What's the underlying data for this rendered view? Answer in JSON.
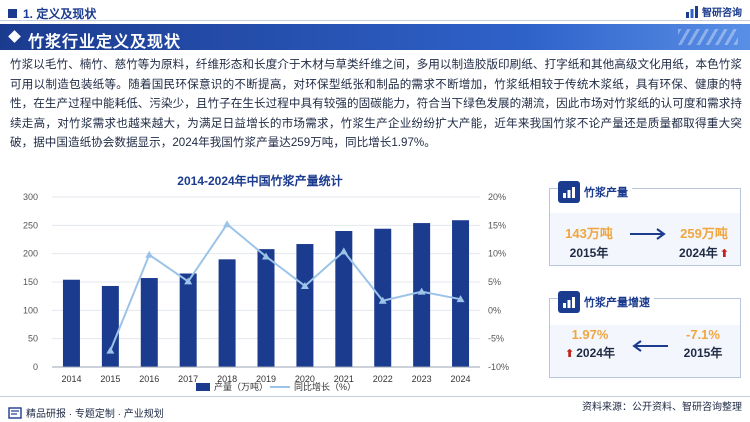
{
  "header": {
    "section_title": "1. 定义及现状",
    "brand_name": "智研咨询"
  },
  "title_bar": {
    "title": "竹浆行业定义及现状"
  },
  "paragraph": "竹浆以毛竹、楠竹、慈竹等为原料，纤维形态和长度介于木材与草类纤维之间，多用以制造胶版印刷纸、打字纸和其他高级文化用纸，本色竹浆可用以制造包装纸等。随着国民环保意识的不断提高，对环保型纸张和制品的需求不断增加，竹浆纸相较于传统木浆纸，具有环保、健康的特性，在生产过程中能耗低、污染少，且竹子在生长过程中具有较强的固碳能力，符合当下绿色发展的潮流，因此市场对竹浆纸的认可度和需求持续走高，对竹浆需求也越来越大，为满足日益增长的市场需求，竹浆生产企业纷纷扩大产能，近年来我国竹浆不论产量还是质量都取得重大突破，据中国造纸协会数据显示，2024年我国竹浆产量达259万吨，同比增长1.97%。",
  "chart_data": {
    "type": "bar+line",
    "title": "2014-2024年中国竹浆产量统计",
    "categories": [
      "2014",
      "2015",
      "2016",
      "2017",
      "2018",
      "2019",
      "2020",
      "2021",
      "2022",
      "2023",
      "2024"
    ],
    "series": [
      {
        "name": "产量（万吨）",
        "type": "bar",
        "axis": "left",
        "color": "#1b3b8f",
        "values": [
          154,
          143,
          157,
          165,
          190,
          208,
          217,
          240,
          244,
          254,
          259
        ]
      },
      {
        "name": "同比增长（%）",
        "type": "line",
        "axis": "right",
        "color": "#9cc3e8",
        "values": [
          null,
          -7.1,
          9.8,
          5.1,
          15.2,
          9.5,
          4.3,
          10.4,
          1.7,
          3.3,
          1.97
        ]
      }
    ],
    "left_axis": {
      "min": 0,
      "max": 300,
      "ticks": [
        "0",
        "50",
        "100",
        "150",
        "200",
        "250",
        "300"
      ]
    },
    "right_axis": {
      "min": -10,
      "max": 20,
      "ticks": [
        "-10%",
        "-5%",
        "0%",
        "5%",
        "10%",
        "15%",
        "20%"
      ]
    },
    "legend": [
      "产量（万吨）",
      "同比增长（%）"
    ]
  },
  "cards": {
    "production": {
      "label": "竹浆产量",
      "from_value": "143万吨",
      "from_year": "2015年",
      "to_value": "259万吨",
      "to_year": "2024年"
    },
    "growth": {
      "label": "竹浆产量增速",
      "from_value": "1.97%",
      "from_year": "2024年",
      "to_value": "-7.1%",
      "to_year": "2015年"
    }
  },
  "footer": {
    "left": "精品研报 · 专题定制 · 产业规划",
    "right": "资料来源：公开资料、智研咨询整理"
  },
  "colors": {
    "primary": "#1b3b8f",
    "accent": "#f0a640",
    "line": "#9cc3e8",
    "up_arrow": "#c0241d"
  }
}
